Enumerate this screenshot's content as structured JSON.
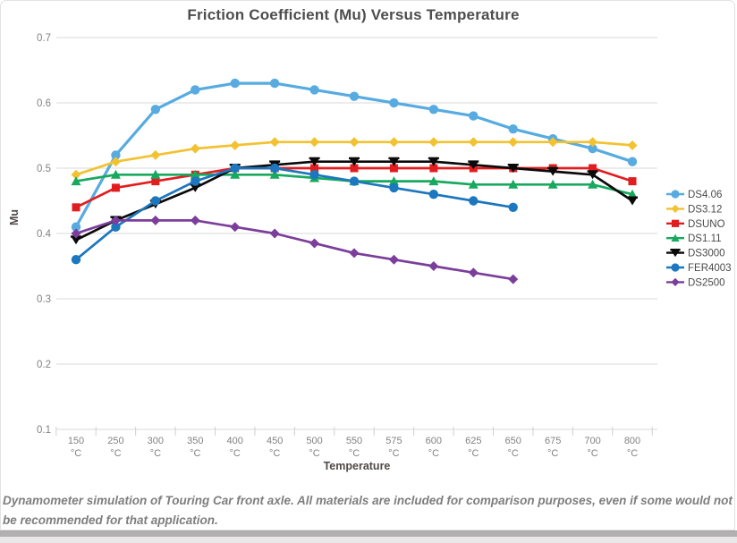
{
  "page": {
    "caption": "Dynamometer simulation of Touring Car front axle. All materials are included for comparison purposes, even if some would not be recommended for that application."
  },
  "chart_data": {
    "type": "line",
    "title": "Friction Coefficient (Mu) Versus Temperature",
    "xlabel": "Temperature",
    "ylabel": "Mu",
    "x_unit": "°C",
    "ylim": [
      0.1,
      0.7
    ],
    "yticks": [
      0.1,
      0.2,
      0.3,
      0.4,
      0.5,
      0.6,
      0.7
    ],
    "grid": "horizontal",
    "legend_position": "right",
    "gridline_color": "#dadada",
    "tick_label_color": "#828282",
    "legend_text_color": "#4a4a4a",
    "categories": [
      "150",
      "250",
      "300",
      "350",
      "400",
      "450",
      "500",
      "550",
      "575",
      "600",
      "625",
      "650",
      "675",
      "700",
      "800"
    ],
    "series": [
      {
        "name": "DS4.06",
        "color": "#57abe0",
        "marker": "circle",
        "values": [
          0.41,
          0.52,
          0.59,
          0.62,
          0.63,
          0.63,
          0.62,
          0.61,
          0.6,
          0.59,
          0.58,
          0.56,
          0.545,
          0.53,
          0.51
        ]
      },
      {
        "name": "DS3.12",
        "color": "#f2c230",
        "marker": "diamond",
        "values": [
          0.49,
          0.51,
          0.52,
          0.53,
          0.535,
          0.54,
          0.54,
          0.54,
          0.54,
          0.54,
          0.54,
          0.54,
          0.54,
          0.54,
          0.535
        ]
      },
      {
        "name": "DSUNO",
        "color": "#e21d1f",
        "marker": "square",
        "values": [
          0.44,
          0.47,
          0.48,
          0.49,
          0.5,
          0.5,
          0.5,
          0.5,
          0.5,
          0.5,
          0.5,
          0.5,
          0.5,
          0.5,
          0.48
        ]
      },
      {
        "name": "DS1.11",
        "color": "#17a95e",
        "marker": "triangle",
        "values": [
          0.48,
          0.49,
          0.49,
          0.49,
          0.49,
          0.49,
          0.485,
          0.48,
          0.48,
          0.48,
          0.475,
          0.475,
          0.475,
          0.475,
          0.46
        ]
      },
      {
        "name": "DS3000",
        "color": "#0a0a0a",
        "marker": "tbar",
        "values": [
          0.39,
          0.42,
          0.445,
          0.47,
          0.5,
          0.505,
          0.51,
          0.51,
          0.51,
          0.51,
          0.505,
          0.5,
          0.495,
          0.49,
          0.45
        ]
      },
      {
        "name": "FER4003",
        "color": "#1c77be",
        "marker": "circle",
        "values": [
          0.36,
          0.41,
          0.45,
          0.48,
          0.5,
          0.5,
          0.49,
          0.48,
          0.47,
          0.46,
          0.45,
          0.44,
          null,
          null,
          null
        ]
      },
      {
        "name": "DS2500",
        "color": "#7b3e9b",
        "marker": "diamond",
        "values": [
          0.4,
          0.42,
          0.42,
          0.42,
          0.41,
          0.4,
          0.385,
          0.37,
          0.36,
          0.35,
          0.34,
          0.33,
          null,
          null,
          null
        ]
      }
    ]
  }
}
